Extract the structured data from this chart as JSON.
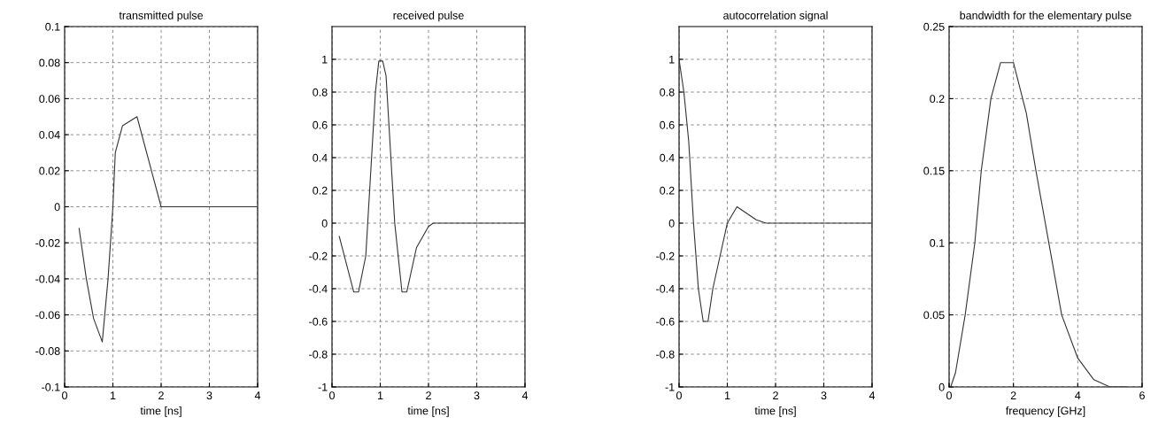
{
  "chart_data": [
    {
      "type": "line",
      "title": "transmitted pulse",
      "xlabel": "time [ns]",
      "grid": true,
      "line_style": "solid",
      "xlim": [
        0,
        4
      ],
      "xticks": [
        0,
        1,
        2,
        3,
        4
      ],
      "ylim": [
        -0.1,
        0.1
      ],
      "yticks": [
        -0.1,
        -0.08,
        -0.06,
        -0.04,
        -0.02,
        0,
        0.02,
        0.04,
        0.06,
        0.08,
        0.1
      ],
      "series": [
        {
          "color": "#333333",
          "x": [
            0.3,
            0.45,
            0.6,
            0.78,
            0.9,
            1.0,
            1.05,
            1.2,
            1.5,
            1.8,
            2.0,
            4.0
          ],
          "values": [
            -0.012,
            -0.04,
            -0.062,
            -0.075,
            -0.04,
            0.0,
            0.03,
            0.045,
            0.05,
            0.02,
            0.0,
            0.0
          ]
        }
      ]
    },
    {
      "type": "line",
      "title": "received pulse",
      "xlabel": "time [ns]",
      "grid": true,
      "line_style": "solid",
      "xlim": [
        0,
        4
      ],
      "xticks": [
        0,
        1,
        2,
        3,
        4
      ],
      "ylim": [
        -1,
        1.2
      ],
      "yticks": [
        -1,
        -0.8,
        -0.6,
        -0.4,
        -0.2,
        0,
        0.2,
        0.4,
        0.6,
        0.8,
        1
      ],
      "series": [
        {
          "color": "#333333",
          "x": [
            0.15,
            0.45,
            0.55,
            0.7,
            0.8,
            0.9,
            0.97,
            1.05,
            1.12,
            1.2,
            1.3,
            1.45,
            1.55,
            1.75,
            2.0,
            2.1,
            4.0
          ],
          "values": [
            -0.08,
            -0.42,
            -0.42,
            -0.2,
            0.3,
            0.8,
            0.99,
            0.99,
            0.9,
            0.5,
            0.0,
            -0.42,
            -0.42,
            -0.15,
            -0.02,
            0.0,
            0.0
          ]
        }
      ]
    },
    {
      "type": "line",
      "title": "autocorrelation signal",
      "xlabel": "time [ns]",
      "grid": true,
      "line_style": "solid",
      "xlim": [
        0,
        4
      ],
      "xticks": [
        0,
        1,
        2,
        3,
        4
      ],
      "ylim": [
        -1,
        1.2
      ],
      "yticks": [
        -1,
        -0.8,
        -0.6,
        -0.4,
        -0.2,
        0,
        0.2,
        0.4,
        0.6,
        0.8,
        1
      ],
      "series": [
        {
          "color": "#333333",
          "x": [
            0,
            0.1,
            0.2,
            0.3,
            0.4,
            0.5,
            0.6,
            0.7,
            0.85,
            1.0,
            1.2,
            1.6,
            1.8,
            4.0
          ],
          "values": [
            1.0,
            0.8,
            0.5,
            0.0,
            -0.4,
            -0.6,
            -0.6,
            -0.4,
            -0.2,
            0.0,
            0.1,
            0.02,
            0.0,
            0.0
          ]
        }
      ]
    },
    {
      "type": "line",
      "title": "bandwidth for the elementary pulse",
      "xlabel": "frequency [GHz]",
      "grid": true,
      "line_style": "solid",
      "xlim": [
        0,
        6
      ],
      "xticks": [
        0,
        2,
        4,
        6
      ],
      "ylim": [
        0,
        0.25
      ],
      "yticks": [
        0,
        0.05,
        0.1,
        0.15,
        0.2,
        0.25
      ],
      "series": [
        {
          "color": "#333333",
          "x": [
            0.05,
            0.2,
            0.5,
            0.8,
            1.0,
            1.3,
            1.6,
            2.0,
            2.4,
            2.7,
            3.1,
            3.5,
            4.0,
            4.5,
            5.0,
            5.5
          ],
          "values": [
            0.0,
            0.01,
            0.05,
            0.1,
            0.15,
            0.2,
            0.225,
            0.225,
            0.19,
            0.15,
            0.1,
            0.05,
            0.02,
            0.005,
            0.0,
            0.0
          ]
        }
      ]
    }
  ]
}
